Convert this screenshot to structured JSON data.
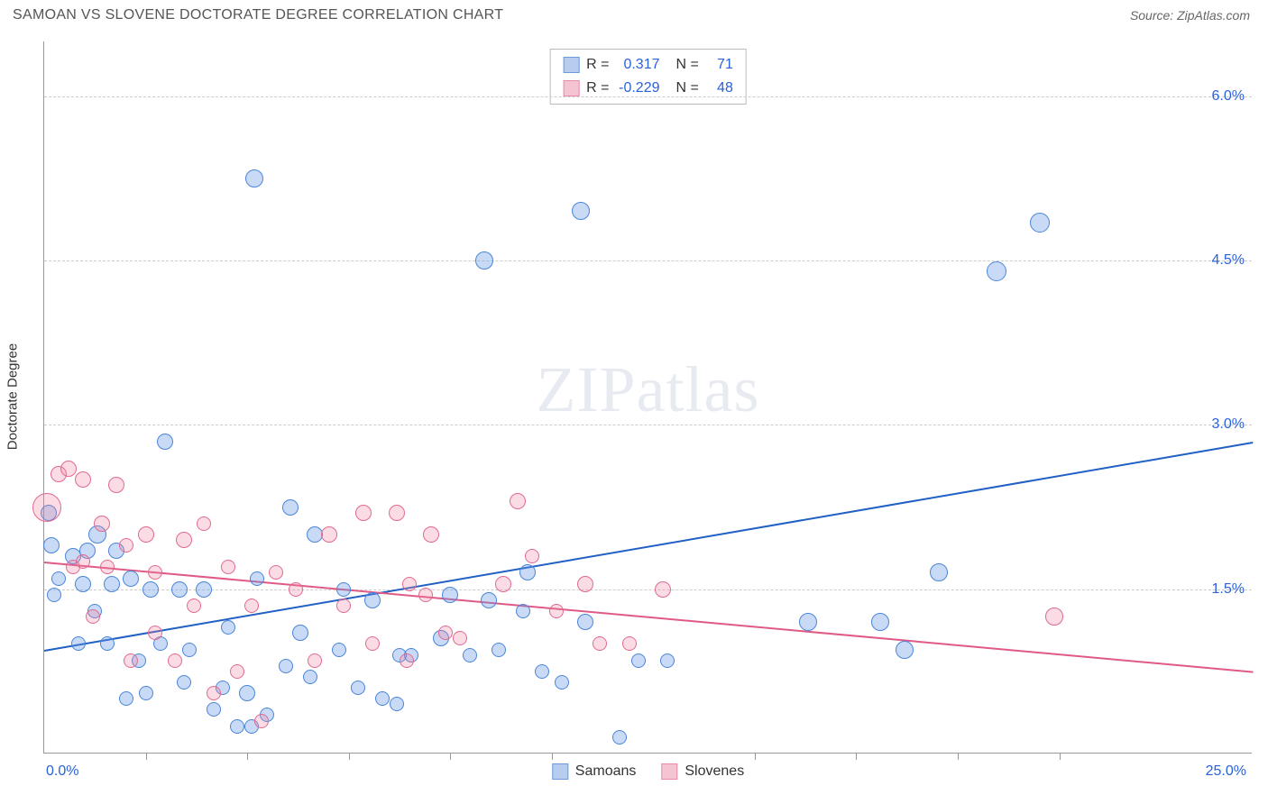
{
  "header": {
    "title": "SAMOAN VS SLOVENE DOCTORATE DEGREE CORRELATION CHART",
    "source": "Source: ZipAtlas.com"
  },
  "chart": {
    "type": "scatter",
    "y_axis_label": "Doctorate Degree",
    "xlim": [
      0,
      25
    ],
    "ylim": [
      0,
      6.5
    ],
    "x_min_label": "0.0%",
    "x_max_label": "25.0%",
    "y_ticks": [
      1.5,
      3.0,
      4.5,
      6.0
    ],
    "y_tick_labels": [
      "1.5%",
      "3.0%",
      "4.5%",
      "6.0%"
    ],
    "x_ticks": [
      2.1,
      4.2,
      6.3,
      8.4,
      10.5,
      14.7,
      16.8,
      18.9,
      21.0
    ],
    "grid_color": "#cccccc",
    "axis_color": "#999999",
    "background_color": "#ffffff",
    "watermark": "ZIPatlas",
    "series": [
      {
        "name": "Samoans",
        "color_fill": "rgba(96,150,230,0.35)",
        "color_stroke": "#4a86d8",
        "swatch_fill": "#b7cdf0",
        "swatch_border": "#6a9be0",
        "trend": {
          "x1": 0,
          "y1": 0.95,
          "x2": 25,
          "y2": 2.85,
          "color": "#2160c4"
        },
        "r_value": "0.317",
        "n_value": "71",
        "points": [
          {
            "x": 0.1,
            "y": 2.2,
            "r": 9
          },
          {
            "x": 0.2,
            "y": 1.45,
            "r": 8
          },
          {
            "x": 0.15,
            "y": 1.9,
            "r": 9
          },
          {
            "x": 0.3,
            "y": 1.6,
            "r": 8
          },
          {
            "x": 0.6,
            "y": 1.8,
            "r": 9
          },
          {
            "x": 0.7,
            "y": 1.0,
            "r": 8
          },
          {
            "x": 0.8,
            "y": 1.55,
            "r": 9
          },
          {
            "x": 0.9,
            "y": 1.85,
            "r": 9
          },
          {
            "x": 1.05,
            "y": 1.3,
            "r": 8
          },
          {
            "x": 1.1,
            "y": 2.0,
            "r": 10
          },
          {
            "x": 1.3,
            "y": 1.0,
            "r": 8
          },
          {
            "x": 1.4,
            "y": 1.55,
            "r": 9
          },
          {
            "x": 1.5,
            "y": 1.85,
            "r": 9
          },
          {
            "x": 1.7,
            "y": 0.5,
            "r": 8
          },
          {
            "x": 1.8,
            "y": 1.6,
            "r": 9
          },
          {
            "x": 1.95,
            "y": 0.85,
            "r": 8
          },
          {
            "x": 2.1,
            "y": 0.55,
            "r": 8
          },
          {
            "x": 2.2,
            "y": 1.5,
            "r": 9
          },
          {
            "x": 2.4,
            "y": 1.0,
            "r": 8
          },
          {
            "x": 2.5,
            "y": 2.85,
            "r": 9
          },
          {
            "x": 2.8,
            "y": 1.5,
            "r": 9
          },
          {
            "x": 2.9,
            "y": 0.65,
            "r": 8
          },
          {
            "x": 3.0,
            "y": 0.95,
            "r": 8
          },
          {
            "x": 3.3,
            "y": 1.5,
            "r": 9
          },
          {
            "x": 3.5,
            "y": 0.4,
            "r": 8
          },
          {
            "x": 3.7,
            "y": 0.6,
            "r": 8
          },
          {
            "x": 3.8,
            "y": 1.15,
            "r": 8
          },
          {
            "x": 4.0,
            "y": 0.25,
            "r": 8
          },
          {
            "x": 4.2,
            "y": 0.55,
            "r": 9
          },
          {
            "x": 4.3,
            "y": 0.25,
            "r": 8
          },
          {
            "x": 4.35,
            "y": 5.25,
            "r": 10
          },
          {
            "x": 4.4,
            "y": 1.6,
            "r": 8
          },
          {
            "x": 4.6,
            "y": 0.35,
            "r": 8
          },
          {
            "x": 5.0,
            "y": 0.8,
            "r": 8
          },
          {
            "x": 5.1,
            "y": 2.25,
            "r": 9
          },
          {
            "x": 5.3,
            "y": 1.1,
            "r": 9
          },
          {
            "x": 5.5,
            "y": 0.7,
            "r": 8
          },
          {
            "x": 5.6,
            "y": 2.0,
            "r": 9
          },
          {
            "x": 6.1,
            "y": 0.95,
            "r": 8
          },
          {
            "x": 6.2,
            "y": 1.5,
            "r": 8
          },
          {
            "x": 6.5,
            "y": 0.6,
            "r": 8
          },
          {
            "x": 6.8,
            "y": 1.4,
            "r": 9
          },
          {
            "x": 7.0,
            "y": 0.5,
            "r": 8
          },
          {
            "x": 7.3,
            "y": 0.45,
            "r": 8
          },
          {
            "x": 7.35,
            "y": 0.9,
            "r": 8
          },
          {
            "x": 7.6,
            "y": 0.9,
            "r": 8
          },
          {
            "x": 8.2,
            "y": 1.05,
            "r": 9
          },
          {
            "x": 8.4,
            "y": 1.45,
            "r": 9
          },
          {
            "x": 8.8,
            "y": 0.9,
            "r": 8
          },
          {
            "x": 9.1,
            "y": 4.5,
            "r": 10
          },
          {
            "x": 9.2,
            "y": 1.4,
            "r": 9
          },
          {
            "x": 9.4,
            "y": 0.95,
            "r": 8
          },
          {
            "x": 9.9,
            "y": 1.3,
            "r": 8
          },
          {
            "x": 10.0,
            "y": 1.65,
            "r": 9
          },
          {
            "x": 10.3,
            "y": 0.75,
            "r": 8
          },
          {
            "x": 10.7,
            "y": 0.65,
            "r": 8
          },
          {
            "x": 11.1,
            "y": 4.95,
            "r": 10
          },
          {
            "x": 11.2,
            "y": 1.2,
            "r": 9
          },
          {
            "x": 11.9,
            "y": 0.15,
            "r": 8
          },
          {
            "x": 12.3,
            "y": 0.85,
            "r": 8
          },
          {
            "x": 12.9,
            "y": 0.85,
            "r": 8
          },
          {
            "x": 15.8,
            "y": 1.2,
            "r": 10
          },
          {
            "x": 17.3,
            "y": 1.2,
            "r": 10
          },
          {
            "x": 17.8,
            "y": 0.95,
            "r": 10
          },
          {
            "x": 18.5,
            "y": 1.65,
            "r": 10
          },
          {
            "x": 19.7,
            "y": 4.4,
            "r": 11
          },
          {
            "x": 20.6,
            "y": 4.85,
            "r": 11
          }
        ]
      },
      {
        "name": "Slovenes",
        "color_fill": "rgba(240,130,160,0.28)",
        "color_stroke": "#e06a90",
        "swatch_fill": "#f4c4d3",
        "swatch_border": "#e88aaa",
        "trend": {
          "x1": 0,
          "y1": 1.75,
          "x2": 25,
          "y2": 0.75,
          "color": "#e05a86"
        },
        "r_value": "-0.229",
        "n_value": "48",
        "points": [
          {
            "x": 0.05,
            "y": 2.25,
            "r": 16
          },
          {
            "x": 0.3,
            "y": 2.55,
            "r": 9
          },
          {
            "x": 0.5,
            "y": 2.6,
            "r": 9
          },
          {
            "x": 0.6,
            "y": 1.7,
            "r": 8
          },
          {
            "x": 0.8,
            "y": 2.5,
            "r": 9
          },
          {
            "x": 0.8,
            "y": 1.75,
            "r": 8
          },
          {
            "x": 1.0,
            "y": 1.25,
            "r": 8
          },
          {
            "x": 1.2,
            "y": 2.1,
            "r": 9
          },
          {
            "x": 1.3,
            "y": 1.7,
            "r": 8
          },
          {
            "x": 1.5,
            "y": 2.45,
            "r": 9
          },
          {
            "x": 1.7,
            "y": 1.9,
            "r": 8
          },
          {
            "x": 1.8,
            "y": 0.85,
            "r": 8
          },
          {
            "x": 2.1,
            "y": 2.0,
            "r": 9
          },
          {
            "x": 2.3,
            "y": 1.1,
            "r": 8
          },
          {
            "x": 2.3,
            "y": 1.65,
            "r": 8
          },
          {
            "x": 2.7,
            "y": 0.85,
            "r": 8
          },
          {
            "x": 2.9,
            "y": 1.95,
            "r": 9
          },
          {
            "x": 3.1,
            "y": 1.35,
            "r": 8
          },
          {
            "x": 3.3,
            "y": 2.1,
            "r": 8
          },
          {
            "x": 3.5,
            "y": 0.55,
            "r": 8
          },
          {
            "x": 3.8,
            "y": 1.7,
            "r": 8
          },
          {
            "x": 4.0,
            "y": 0.75,
            "r": 8
          },
          {
            "x": 4.3,
            "y": 1.35,
            "r": 8
          },
          {
            "x": 4.5,
            "y": 0.3,
            "r": 8
          },
          {
            "x": 4.8,
            "y": 1.65,
            "r": 8
          },
          {
            "x": 5.2,
            "y": 1.5,
            "r": 8
          },
          {
            "x": 5.6,
            "y": 0.85,
            "r": 8
          },
          {
            "x": 5.9,
            "y": 2.0,
            "r": 9
          },
          {
            "x": 6.2,
            "y": 1.35,
            "r": 8
          },
          {
            "x": 6.6,
            "y": 2.2,
            "r": 9
          },
          {
            "x": 6.8,
            "y": 1.0,
            "r": 8
          },
          {
            "x": 7.3,
            "y": 2.2,
            "r": 9
          },
          {
            "x": 7.5,
            "y": 0.85,
            "r": 8
          },
          {
            "x": 7.55,
            "y": 1.55,
            "r": 8
          },
          {
            "x": 7.9,
            "y": 1.45,
            "r": 8
          },
          {
            "x": 8.0,
            "y": 2.0,
            "r": 9
          },
          {
            "x": 8.3,
            "y": 1.1,
            "r": 8
          },
          {
            "x": 8.6,
            "y": 1.05,
            "r": 8
          },
          {
            "x": 9.5,
            "y": 1.55,
            "r": 9
          },
          {
            "x": 9.8,
            "y": 2.3,
            "r": 9
          },
          {
            "x": 10.1,
            "y": 1.8,
            "r": 8
          },
          {
            "x": 10.6,
            "y": 1.3,
            "r": 8
          },
          {
            "x": 11.2,
            "y": 1.55,
            "r": 9
          },
          {
            "x": 11.5,
            "y": 1.0,
            "r": 8
          },
          {
            "x": 12.1,
            "y": 1.0,
            "r": 8
          },
          {
            "x": 12.8,
            "y": 1.5,
            "r": 9
          },
          {
            "x": 20.9,
            "y": 1.25,
            "r": 10
          }
        ]
      }
    ],
    "bottom_legend": [
      {
        "label": "Samoans",
        "swatch_fill": "#b7cdf0",
        "swatch_border": "#6a9be0"
      },
      {
        "label": "Slovenes",
        "swatch_fill": "#f4c4d3",
        "swatch_border": "#e88aaa"
      }
    ]
  }
}
